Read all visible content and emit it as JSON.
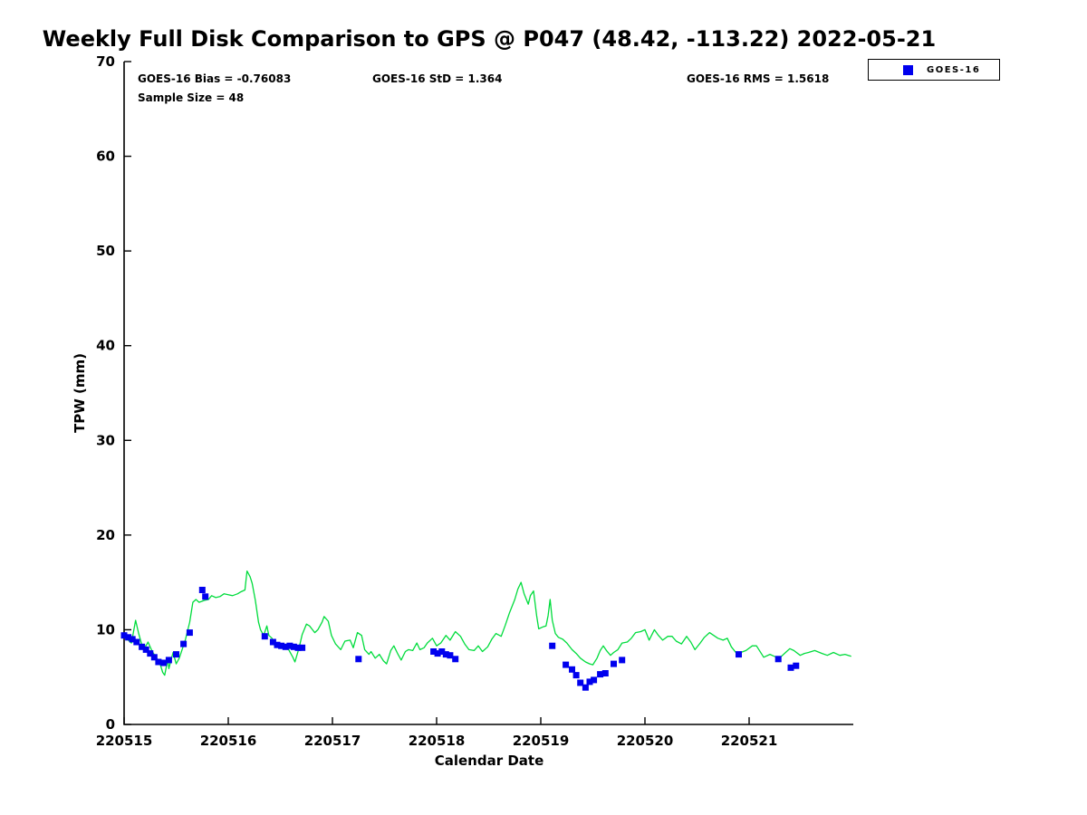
{
  "title": "Weekly Full Disk Comparison to GPS @ P047 (48.42, -113.22) 2022-05-21",
  "stats": {
    "bias": "GOES-16 Bias = -0.76083",
    "std": "GOES-16 StD = 1.364",
    "rms": "GOES-16 RMS = 1.5618",
    "sample_size": "Sample Size = 48"
  },
  "legend": {
    "label": "GOES-16",
    "marker": "square",
    "marker_color": "#0000ee"
  },
  "colors": {
    "gps_line": "#00dc3c",
    "goes_marker": "#0000ee",
    "axis": "#000000",
    "background": "#ffffff"
  },
  "chart_data": {
    "type": "line",
    "title": "Weekly Full Disk Comparison to GPS @ P047 (48.42, -113.22) 2022-05-21",
    "xlabel": "Calendar Date",
    "ylabel": "TPW (mm)",
    "ylim": [
      0,
      70
    ],
    "y_ticks": [
      0,
      10,
      20,
      30,
      40,
      50,
      60,
      70
    ],
    "x_tick_labels": [
      "220515",
      "220516",
      "220517",
      "220518",
      "220519",
      "220520",
      "220521"
    ],
    "x_range_days": [
      0,
      7
    ],
    "grid": false,
    "legend_position": "top-right",
    "series": [
      {
        "name": "GPS",
        "type": "line",
        "color": "#00dc3c",
        "points": [
          [
            0.0,
            9.2
          ],
          [
            0.03,
            9.0
          ],
          [
            0.07,
            8.6
          ],
          [
            0.11,
            11.0
          ],
          [
            0.14,
            9.6
          ],
          [
            0.17,
            8.4
          ],
          [
            0.21,
            8.3
          ],
          [
            0.23,
            8.7
          ],
          [
            0.27,
            7.7
          ],
          [
            0.3,
            7.2
          ],
          [
            0.34,
            6.6
          ],
          [
            0.37,
            5.5
          ],
          [
            0.39,
            5.2
          ],
          [
            0.42,
            6.9
          ],
          [
            0.43,
            5.9
          ],
          [
            0.47,
            7.6
          ],
          [
            0.5,
            6.4
          ],
          [
            0.53,
            7.0
          ],
          [
            0.56,
            8.0
          ],
          [
            0.59,
            9.0
          ],
          [
            0.63,
            10.8
          ],
          [
            0.66,
            12.9
          ],
          [
            0.69,
            13.2
          ],
          [
            0.72,
            12.9
          ],
          [
            0.77,
            13.1
          ],
          [
            0.81,
            13.2
          ],
          [
            0.84,
            13.6
          ],
          [
            0.88,
            13.4
          ],
          [
            0.92,
            13.5
          ],
          [
            0.96,
            13.8
          ],
          [
            1.0,
            13.7
          ],
          [
            1.04,
            13.6
          ],
          [
            1.09,
            13.8
          ],
          [
            1.12,
            14.0
          ],
          [
            1.16,
            14.2
          ],
          [
            1.18,
            16.2
          ],
          [
            1.21,
            15.6
          ],
          [
            1.23,
            14.9
          ],
          [
            1.26,
            13.1
          ],
          [
            1.29,
            10.8
          ],
          [
            1.31,
            10.0
          ],
          [
            1.34,
            9.4
          ],
          [
            1.37,
            10.4
          ],
          [
            1.39,
            9.4
          ],
          [
            1.42,
            9.1
          ],
          [
            1.44,
            8.4
          ],
          [
            1.48,
            8.3
          ],
          [
            1.51,
            8.5
          ],
          [
            1.55,
            8.0
          ],
          [
            1.58,
            7.9
          ],
          [
            1.62,
            7.1
          ],
          [
            1.64,
            6.6
          ],
          [
            1.68,
            8.1
          ],
          [
            1.71,
            9.5
          ],
          [
            1.75,
            10.6
          ],
          [
            1.78,
            10.4
          ],
          [
            1.83,
            9.7
          ],
          [
            1.86,
            10.0
          ],
          [
            1.9,
            10.8
          ],
          [
            1.92,
            11.4
          ],
          [
            1.96,
            10.9
          ],
          [
            1.99,
            9.4
          ],
          [
            2.03,
            8.5
          ],
          [
            2.08,
            7.9
          ],
          [
            2.12,
            8.8
          ],
          [
            2.17,
            8.9
          ],
          [
            2.2,
            8.1
          ],
          [
            2.24,
            9.7
          ],
          [
            2.28,
            9.4
          ],
          [
            2.31,
            7.9
          ],
          [
            2.35,
            7.4
          ],
          [
            2.37,
            7.7
          ],
          [
            2.41,
            7.0
          ],
          [
            2.45,
            7.4
          ],
          [
            2.49,
            6.7
          ],
          [
            2.52,
            6.4
          ],
          [
            2.56,
            7.8
          ],
          [
            2.59,
            8.3
          ],
          [
            2.63,
            7.4
          ],
          [
            2.66,
            6.8
          ],
          [
            2.7,
            7.7
          ],
          [
            2.73,
            7.9
          ],
          [
            2.77,
            7.8
          ],
          [
            2.81,
            8.6
          ],
          [
            2.84,
            7.9
          ],
          [
            2.88,
            8.1
          ],
          [
            2.91,
            8.6
          ],
          [
            2.96,
            9.1
          ],
          [
            3.0,
            8.3
          ],
          [
            3.04,
            8.6
          ],
          [
            3.09,
            9.4
          ],
          [
            3.13,
            8.9
          ],
          [
            3.18,
            9.8
          ],
          [
            3.23,
            9.3
          ],
          [
            3.27,
            8.5
          ],
          [
            3.31,
            7.9
          ],
          [
            3.36,
            7.8
          ],
          [
            3.4,
            8.3
          ],
          [
            3.44,
            7.7
          ],
          [
            3.49,
            8.2
          ],
          [
            3.53,
            9.0
          ],
          [
            3.57,
            9.6
          ],
          [
            3.62,
            9.3
          ],
          [
            3.66,
            10.5
          ],
          [
            3.7,
            11.8
          ],
          [
            3.75,
            13.2
          ],
          [
            3.78,
            14.3
          ],
          [
            3.81,
            15.0
          ],
          [
            3.84,
            13.8
          ],
          [
            3.88,
            12.7
          ],
          [
            3.9,
            13.6
          ],
          [
            3.93,
            14.1
          ],
          [
            3.96,
            11.5
          ],
          [
            3.98,
            10.1
          ],
          [
            4.02,
            10.3
          ],
          [
            4.05,
            10.4
          ],
          [
            4.07,
            11.5
          ],
          [
            4.09,
            13.2
          ],
          [
            4.11,
            11.0
          ],
          [
            4.14,
            9.6
          ],
          [
            4.17,
            9.2
          ],
          [
            4.21,
            9.0
          ],
          [
            4.25,
            8.6
          ],
          [
            4.3,
            7.9
          ],
          [
            4.34,
            7.5
          ],
          [
            4.38,
            7.0
          ],
          [
            4.43,
            6.6
          ],
          [
            4.47,
            6.4
          ],
          [
            4.5,
            6.3
          ],
          [
            4.54,
            7.0
          ],
          [
            4.57,
            7.8
          ],
          [
            4.6,
            8.3
          ],
          [
            4.63,
            7.8
          ],
          [
            4.67,
            7.3
          ],
          [
            4.7,
            7.6
          ],
          [
            4.74,
            7.9
          ],
          [
            4.78,
            8.6
          ],
          [
            4.83,
            8.7
          ],
          [
            4.87,
            9.1
          ],
          [
            4.91,
            9.7
          ],
          [
            4.96,
            9.8
          ],
          [
            5.0,
            10.0
          ],
          [
            5.04,
            8.9
          ],
          [
            5.09,
            10.0
          ],
          [
            5.13,
            9.4
          ],
          [
            5.17,
            8.9
          ],
          [
            5.22,
            9.3
          ],
          [
            5.26,
            9.3
          ],
          [
            5.3,
            8.8
          ],
          [
            5.35,
            8.5
          ],
          [
            5.4,
            9.3
          ],
          [
            5.44,
            8.7
          ],
          [
            5.48,
            7.9
          ],
          [
            5.53,
            8.6
          ],
          [
            5.57,
            9.2
          ],
          [
            5.62,
            9.7
          ],
          [
            5.66,
            9.4
          ],
          [
            5.7,
            9.1
          ],
          [
            5.75,
            8.9
          ],
          [
            5.79,
            9.1
          ],
          [
            5.83,
            8.2
          ],
          [
            5.88,
            7.5
          ],
          [
            5.92,
            7.6
          ],
          [
            5.97,
            7.8
          ],
          [
            6.03,
            8.3
          ],
          [
            6.07,
            8.3
          ],
          [
            6.14,
            7.1
          ],
          [
            6.2,
            7.4
          ],
          [
            6.24,
            7.2
          ],
          [
            6.29,
            7.0
          ],
          [
            6.35,
            7.6
          ],
          [
            6.39,
            8.0
          ],
          [
            6.43,
            7.8
          ],
          [
            6.49,
            7.3
          ],
          [
            6.53,
            7.5
          ],
          [
            6.57,
            7.6
          ],
          [
            6.63,
            7.8
          ],
          [
            6.7,
            7.5
          ],
          [
            6.75,
            7.3
          ],
          [
            6.81,
            7.6
          ],
          [
            6.87,
            7.3
          ],
          [
            6.92,
            7.4
          ],
          [
            6.98,
            7.2
          ]
        ]
      },
      {
        "name": "GOES-16",
        "type": "scatter",
        "color": "#0000ee",
        "marker": "square",
        "points": [
          [
            0.0,
            9.4
          ],
          [
            0.04,
            9.2
          ],
          [
            0.08,
            9.0
          ],
          [
            0.12,
            8.7
          ],
          [
            0.17,
            8.2
          ],
          [
            0.21,
            7.9
          ],
          [
            0.25,
            7.5
          ],
          [
            0.29,
            7.1
          ],
          [
            0.33,
            6.6
          ],
          [
            0.38,
            6.5
          ],
          [
            0.43,
            6.8
          ],
          [
            0.5,
            7.4
          ],
          [
            0.57,
            8.5
          ],
          [
            0.63,
            9.7
          ],
          [
            0.75,
            14.2
          ],
          [
            0.78,
            13.5
          ],
          [
            1.35,
            9.3
          ],
          [
            1.43,
            8.7
          ],
          [
            1.47,
            8.4
          ],
          [
            1.51,
            8.3
          ],
          [
            1.55,
            8.2
          ],
          [
            1.59,
            8.3
          ],
          [
            1.63,
            8.2
          ],
          [
            1.67,
            8.1
          ],
          [
            1.71,
            8.1
          ],
          [
            2.25,
            6.9
          ],
          [
            2.97,
            7.7
          ],
          [
            3.01,
            7.5
          ],
          [
            3.05,
            7.7
          ],
          [
            3.09,
            7.4
          ],
          [
            3.13,
            7.3
          ],
          [
            3.18,
            6.9
          ],
          [
            4.11,
            8.3
          ],
          [
            4.24,
            6.3
          ],
          [
            4.3,
            5.8
          ],
          [
            4.34,
            5.2
          ],
          [
            4.38,
            4.4
          ],
          [
            4.43,
            3.9
          ],
          [
            4.47,
            4.5
          ],
          [
            4.51,
            4.7
          ],
          [
            4.57,
            5.3
          ],
          [
            4.62,
            5.4
          ],
          [
            4.7,
            6.4
          ],
          [
            4.78,
            6.8
          ],
          [
            5.9,
            7.4
          ],
          [
            6.28,
            6.9
          ],
          [
            6.4,
            6.0
          ],
          [
            6.45,
            6.2
          ]
        ]
      }
    ]
  }
}
